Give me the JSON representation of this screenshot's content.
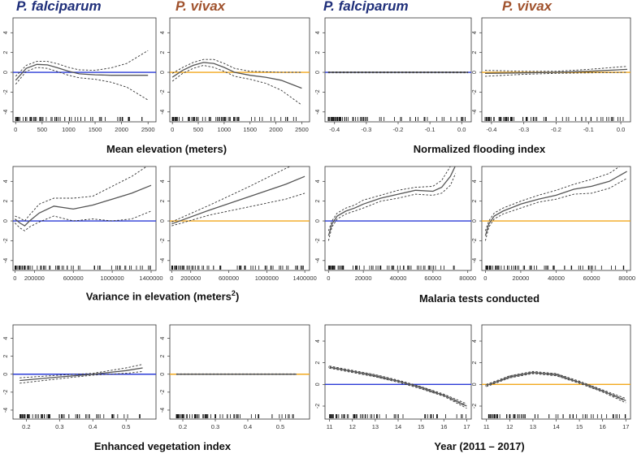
{
  "headers": {
    "left_pf": "P. falciparum",
    "left_pv": "P. vivax",
    "right_pf": "P. falciparum",
    "right_pv": "P. vivax"
  },
  "captions": {
    "elevation": "Mean elevation (meters)",
    "flooding": "Normalized flooding index",
    "variance_main": "Variance in elevation (meters",
    "variance_sup": "2",
    "variance_end": ")",
    "tests": "Malaria tests conducted",
    "evi": "Enhanced vegetation index",
    "year": "Year (2011 – 2017)"
  },
  "colors": {
    "pf_ref": "#2b3bd6",
    "pv_ref": "#f2a81d",
    "curve": "#555555",
    "band": "#333333",
    "pf_header": "#1f2f7a",
    "pv_header": "#a0522d"
  },
  "chart_data": [
    {
      "id": "elev_pf",
      "type": "line",
      "title": "Mean elevation – P. falciparum",
      "xlabel": "Mean elevation (meters)",
      "ylabel": "",
      "xlim": [
        -50,
        2650
      ],
      "ylim": [
        -5,
        5.5
      ],
      "xticks": [
        0,
        500,
        1000,
        1500,
        2000,
        2500
      ],
      "xtick_labels": [
        "0",
        "500",
        "1000",
        "1500",
        "2000",
        "2500"
      ],
      "yticks": [
        -4,
        -2,
        0,
        2,
        4
      ],
      "ref": "pf",
      "x": [
        0,
        200,
        400,
        600,
        800,
        1000,
        1200,
        1500,
        1800,
        2100,
        2500
      ],
      "y": [
        -0.8,
        0.4,
        0.8,
        0.75,
        0.45,
        0.1,
        -0.15,
        -0.25,
        -0.3,
        -0.3,
        -0.3
      ],
      "upper": [
        -0.4,
        0.7,
        1.1,
        1.1,
        0.85,
        0.5,
        0.25,
        0.2,
        0.45,
        0.9,
        2.2
      ],
      "lower": [
        -1.2,
        0.1,
        0.5,
        0.4,
        0.05,
        -0.3,
        -0.55,
        -0.7,
        -1.0,
        -1.5,
        -2.8
      ]
    },
    {
      "id": "elev_pv",
      "type": "line",
      "title": "Mean elevation – P. vivax",
      "xlabel": "",
      "ylabel": "",
      "xlim": [
        -50,
        2650
      ],
      "ylim": [
        -5,
        5.5
      ],
      "xticks": [
        0,
        500,
        1000,
        1500,
        2000,
        2500
      ],
      "xtick_labels": [
        "0",
        "500",
        "1000",
        "1500",
        "2000",
        "2500"
      ],
      "yticks": [
        -4,
        -2,
        0,
        2,
        4
      ],
      "ref": "pv",
      "x": [
        0,
        200,
        400,
        600,
        800,
        1000,
        1200,
        1500,
        1800,
        2100,
        2500
      ],
      "y": [
        -0.5,
        0.2,
        0.7,
        1.0,
        0.9,
        0.5,
        0.0,
        -0.3,
        -0.5,
        -0.8,
        -1.6
      ],
      "upper": [
        -0.1,
        0.5,
        1.0,
        1.3,
        1.3,
        0.9,
        0.4,
        0.1,
        0.05,
        0.0,
        0.0
      ],
      "lower": [
        -0.9,
        -0.1,
        0.4,
        0.7,
        0.5,
        0.1,
        -0.4,
        -0.7,
        -1.1,
        -1.8,
        -3.3
      ]
    },
    {
      "id": "flood_pf",
      "type": "line",
      "title": "Normalized flooding index – P. falciparum",
      "xlabel": "Normalized flooding index",
      "ylabel": "",
      "xlim": [
        -0.43,
        0.03
      ],
      "ylim": [
        -5,
        5.5
      ],
      "xticks": [
        -0.4,
        -0.3,
        -0.2,
        -0.1,
        0.0
      ],
      "xtick_labels": [
        "-0.4",
        "-0.3",
        "-0.2",
        "-0.1",
        "0.0"
      ],
      "yticks": [
        -4,
        -2,
        0,
        2,
        4
      ],
      "ref": "pf",
      "x": [
        -0.42,
        -0.3,
        -0.2,
        -0.1,
        0.02
      ],
      "y": [
        0,
        0,
        0,
        0,
        0
      ],
      "upper": [
        0.05,
        0.05,
        0.05,
        0.05,
        0.05
      ],
      "lower": [
        -0.05,
        -0.05,
        -0.05,
        -0.05,
        -0.05
      ]
    },
    {
      "id": "flood_pv",
      "type": "line",
      "title": "Normalized flooding index – P. vivax",
      "xlabel": "",
      "ylabel": "",
      "xlim": [
        -0.43,
        0.03
      ],
      "ylim": [
        -5,
        5.5
      ],
      "xticks": [
        -0.4,
        -0.3,
        -0.2,
        -0.1,
        0.0
      ],
      "xtick_labels": [
        "-0.4",
        "-0.3",
        "-0.2",
        "-0.1",
        "0.0"
      ],
      "yticks": [
        -4,
        -2,
        0,
        2,
        4
      ],
      "ref": "pv",
      "x": [
        -0.42,
        -0.3,
        -0.2,
        -0.1,
        0.02
      ],
      "y": [
        -0.1,
        -0.05,
        0.0,
        0.1,
        0.3
      ],
      "upper": [
        0.2,
        0.1,
        0.1,
        0.3,
        0.6
      ],
      "lower": [
        -0.4,
        -0.2,
        -0.1,
        -0.05,
        0.0
      ]
    },
    {
      "id": "var_pf",
      "type": "line",
      "title": "Variance in elevation – P. falciparum",
      "xlabel": "Variance in elevation (meters²)",
      "ylabel": "",
      "xlim": [
        -20000,
        1450000
      ],
      "ylim": [
        -5,
        5.5
      ],
      "xticks": [
        0,
        200000,
        600000,
        1000000,
        1400000
      ],
      "xtick_labels": [
        "0",
        "200000",
        "600000",
        "1000000",
        "1400000"
      ],
      "yticks": [
        -4,
        -2,
        0,
        2,
        4
      ],
      "ref": "pf",
      "x": [
        0,
        50000,
        100000,
        150000,
        250000,
        400000,
        600000,
        800000,
        1000000,
        1200000,
        1400000
      ],
      "y": [
        0.2,
        -0.2,
        -0.5,
        0.0,
        0.8,
        1.5,
        1.2,
        1.6,
        2.2,
        2.8,
        3.6
      ],
      "upper": [
        0.5,
        0.3,
        0.0,
        0.6,
        1.7,
        2.3,
        2.3,
        2.5,
        3.5,
        4.5,
        5.8
      ],
      "lower": [
        -0.2,
        -0.7,
        -1.0,
        -0.6,
        -0.1,
        0.5,
        0.0,
        0.2,
        0.0,
        0.2,
        1.0
      ]
    },
    {
      "id": "var_pv",
      "type": "line",
      "title": "Variance in elevation – P. vivax",
      "xlabel": "",
      "ylabel": "",
      "xlim": [
        -20000,
        1450000
      ],
      "ylim": [
        -5,
        5.5
      ],
      "xticks": [
        0,
        200000,
        600000,
        1000000,
        1400000
      ],
      "xtick_labels": [
        "0",
        "200000",
        "600000",
        "1000000",
        "1400000"
      ],
      "yticks": [
        -4,
        -2,
        0,
        2,
        4
      ],
      "ref": "pv",
      "x": [
        0,
        400000,
        800000,
        1200000,
        1400000
      ],
      "y": [
        -0.3,
        1.1,
        2.4,
        3.7,
        4.5
      ],
      "upper": [
        -0.1,
        1.6,
        3.4,
        5.3,
        6.2
      ],
      "lower": [
        -0.5,
        0.6,
        1.4,
        2.2,
        2.8
      ]
    },
    {
      "id": "tests_pf",
      "type": "line",
      "title": "Malaria tests conducted – P. falciparum",
      "xlabel": "Malaria tests conducted",
      "ylabel": "",
      "xlim": [
        -2000,
        82000
      ],
      "ylim": [
        -5,
        5.5
      ],
      "xticks": [
        0,
        20000,
        40000,
        60000,
        80000
      ],
      "xtick_labels": [
        "0",
        "20000",
        "40000",
        "60000",
        "80000"
      ],
      "yticks": [
        -4,
        -2,
        0,
        2,
        4
      ],
      "ref": "pf",
      "x": [
        0,
        2000,
        5000,
        10000,
        15000,
        20000,
        30000,
        40000,
        50000,
        60000,
        65000,
        70000,
        73000
      ],
      "y": [
        -1.5,
        -0.3,
        0.5,
        1.0,
        1.3,
        1.7,
        2.3,
        2.7,
        3.1,
        3.0,
        3.4,
        4.5,
        5.6
      ],
      "upper": [
        -1.0,
        0.0,
        0.8,
        1.3,
        1.6,
        2.1,
        2.6,
        3.1,
        3.4,
        3.5,
        4.1,
        5.5,
        6.5
      ],
      "lower": [
        -2.0,
        -0.6,
        0.2,
        0.7,
        1.0,
        1.3,
        2.0,
        2.3,
        2.7,
        2.6,
        2.8,
        3.6,
        4.8
      ]
    },
    {
      "id": "tests_pv",
      "type": "line",
      "title": "Malaria tests conducted – P. vivax",
      "xlabel": "",
      "ylabel": "",
      "xlim": [
        -2000,
        82000
      ],
      "ylim": [
        -5,
        5.5
      ],
      "xticks": [
        0,
        20000,
        40000,
        60000,
        80000
      ],
      "xtick_labels": [
        "0",
        "20000",
        "40000",
        "60000",
        "80000"
      ],
      "yticks": [
        -4,
        -2,
        0,
        2,
        4
      ],
      "ref": "pv",
      "x": [
        0,
        2000,
        5000,
        10000,
        20000,
        30000,
        40000,
        50000,
        60000,
        70000,
        80000
      ],
      "y": [
        -1.5,
        -0.3,
        0.5,
        1.0,
        1.7,
        2.2,
        2.6,
        3.2,
        3.5,
        4.0,
        5.0
      ],
      "upper": [
        -1.0,
        0.0,
        0.8,
        1.3,
        2.0,
        2.6,
        3.1,
        3.7,
        4.2,
        4.8,
        6.0
      ],
      "lower": [
        -2.0,
        -0.6,
        0.2,
        0.7,
        1.3,
        1.9,
        2.2,
        2.7,
        2.8,
        3.3,
        4.3
      ]
    },
    {
      "id": "evi_pf",
      "type": "line",
      "title": "Enhanced vegetation index – P. falciparum",
      "xlabel": "Enhanced vegetation index",
      "ylabel": "",
      "xlim": [
        0.16,
        0.59
      ],
      "ylim": [
        -5,
        5.5
      ],
      "xticks": [
        0.2,
        0.3,
        0.4,
        0.5
      ],
      "xtick_labels": [
        "0.2",
        "0.3",
        "0.4",
        "0.5"
      ],
      "yticks": [
        -4,
        -2,
        0,
        2,
        4
      ],
      "ref": "pf",
      "x": [
        0.18,
        0.3,
        0.4,
        0.5,
        0.55
      ],
      "y": [
        -0.7,
        -0.3,
        0.0,
        0.4,
        0.7
      ],
      "upper": [
        -0.4,
        -0.1,
        0.1,
        0.7,
        1.1
      ],
      "lower": [
        -1.0,
        -0.5,
        -0.1,
        0.1,
        0.3
      ]
    },
    {
      "id": "evi_pv",
      "type": "line",
      "title": "Enhanced vegetation index – P. vivax",
      "xlabel": "",
      "ylabel": "",
      "xlim": [
        0.16,
        0.59
      ],
      "ylim": [
        -5,
        5.5
      ],
      "xticks": [
        0.2,
        0.3,
        0.4,
        0.5
      ],
      "xtick_labels": [
        "0.2",
        "0.3",
        "0.4",
        "0.5"
      ],
      "yticks": [
        -4,
        -2,
        0,
        2,
        4
      ],
      "ref": "pv",
      "x": [
        0.18,
        0.3,
        0.4,
        0.5,
        0.55
      ],
      "y": [
        0,
        0,
        0,
        0,
        0
      ],
      "upper": [
        0.04,
        0.04,
        0.04,
        0.04,
        0.04
      ],
      "lower": [
        -0.04,
        -0.04,
        -0.04,
        -0.04,
        -0.04
      ]
    },
    {
      "id": "year_pf",
      "type": "line",
      "title": "Year – P. falciparum",
      "xlabel": "Year (2011 – 2017)",
      "ylabel": "",
      "xlim": [
        10.8,
        17.2
      ],
      "ylim": [
        -3.2,
        5.5
      ],
      "xticks": [
        11,
        12,
        13,
        14,
        15,
        16,
        17
      ],
      "xtick_labels": [
        "11",
        "12",
        "13",
        "14",
        "15",
        "16",
        "17"
      ],
      "yticks": [
        -2,
        0,
        2,
        4
      ],
      "ref": "pf",
      "x": [
        11,
        12,
        13,
        14,
        15,
        16,
        17
      ],
      "y": [
        1.6,
        1.2,
        0.8,
        0.3,
        -0.3,
        -1.0,
        -2.0
      ],
      "upper": [
        1.7,
        1.3,
        0.9,
        0.4,
        -0.2,
        -0.9,
        -1.8
      ],
      "lower": [
        1.5,
        1.1,
        0.7,
        0.2,
        -0.4,
        -1.1,
        -2.2
      ]
    },
    {
      "id": "year_pv",
      "type": "line",
      "title": "Year – P. vivax",
      "xlabel": "",
      "ylabel": "",
      "xlim": [
        10.8,
        17.2
      ],
      "ylim": [
        -3.2,
        5.5
      ],
      "xticks": [
        11,
        12,
        13,
        14,
        15,
        16,
        17
      ],
      "xtick_labels": [
        "11",
        "12",
        "13",
        "14",
        "15",
        "16",
        "17"
      ],
      "yticks": [
        -2,
        0,
        2,
        4
      ],
      "ref": "pv",
      "x": [
        11,
        12,
        13,
        14,
        15,
        16,
        17
      ],
      "y": [
        -0.1,
        0.7,
        1.1,
        0.9,
        0.2,
        -0.6,
        -1.5
      ],
      "upper": [
        0.0,
        0.8,
        1.2,
        1.0,
        0.3,
        -0.5,
        -1.3
      ],
      "lower": [
        -0.2,
        0.6,
        1.0,
        0.8,
        0.1,
        -0.7,
        -1.7
      ]
    }
  ]
}
